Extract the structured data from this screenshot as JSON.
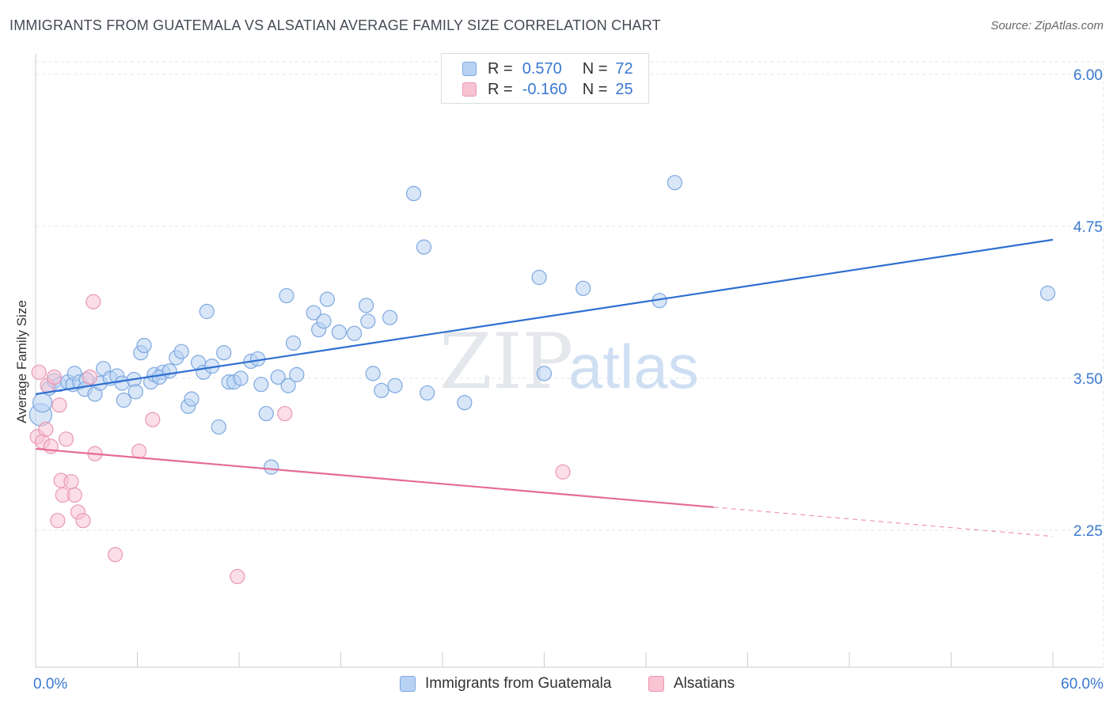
{
  "title": "IMMIGRANTS FROM GUATEMALA VS ALSATIAN AVERAGE FAMILY SIZE CORRELATION CHART",
  "source": "Source: ZipAtlas.com",
  "watermark": {
    "zip": "ZIP",
    "atlas": "atlas"
  },
  "legend": {
    "rows": [
      {
        "r_label": "R =",
        "r_value": "0.570",
        "n_label": "N =",
        "n_value": "72"
      },
      {
        "r_label": "R =",
        "r_value": "-0.160",
        "n_label": "N =",
        "n_value": "25"
      }
    ]
  },
  "bottom_legend": [
    "Immigrants from Guatemala",
    "Alsatians"
  ],
  "colors": {
    "blue_fill": "#b8d2f3",
    "blue_stroke": "#7ea8e0",
    "blue_line": "#2f6fd0",
    "pink_fill": "#f8c3d3",
    "pink_stroke": "#ea98b4",
    "pink_line": "#e56b98",
    "tick_label": "#3a78d0",
    "grid": "#e3e6ea"
  },
  "chart_data": {
    "type": "scatter",
    "title": "IMMIGRANTS FROM GUATEMALA VS ALSATIAN AVERAGE FAMILY SIZE CORRELATION CHART",
    "xlabel": "",
    "ylabel": "Average Family Size",
    "xlim": [
      0,
      60
    ],
    "ylim": [
      1.25,
      6.25
    ],
    "x_tick_labels": [
      "0.0%",
      "60.0%"
    ],
    "y_ticks": [
      2.25,
      3.5,
      4.75,
      6.0
    ],
    "y_tick_labels": [
      "2.25",
      "3.50",
      "4.75",
      "6.00"
    ],
    "grid": true,
    "legend_position": "top-center",
    "series": [
      {
        "name": "Immigrants from Guatemala",
        "trend": {
          "x": [
            0,
            60
          ],
          "y": [
            3.37,
            4.64
          ]
        },
        "points": [
          [
            0.3,
            3.2,
            14
          ],
          [
            0.4,
            3.3,
            12
          ],
          [
            0.8,
            3.42,
            9
          ],
          [
            1.1,
            3.48,
            9
          ],
          [
            1.4,
            3.45,
            9
          ],
          [
            1.9,
            3.47,
            9
          ],
          [
            2.2,
            3.45,
            9
          ],
          [
            2.3,
            3.54,
            9
          ],
          [
            2.6,
            3.47,
            9
          ],
          [
            3.0,
            3.49,
            9
          ],
          [
            2.9,
            3.41,
            9
          ],
          [
            3.5,
            3.37,
            9
          ],
          [
            3.8,
            3.46,
            9
          ],
          [
            4.0,
            3.58,
            9
          ],
          [
            4.4,
            3.5,
            9
          ],
          [
            4.8,
            3.52,
            9
          ],
          [
            5.1,
            3.46,
            9
          ],
          [
            5.2,
            3.32,
            9
          ],
          [
            5.8,
            3.49,
            9
          ],
          [
            5.9,
            3.39,
            9
          ],
          [
            6.2,
            3.71,
            9
          ],
          [
            6.4,
            3.77,
            9
          ],
          [
            6.8,
            3.47,
            9
          ],
          [
            7.0,
            3.53,
            9
          ],
          [
            7.5,
            3.55,
            9
          ],
          [
            7.3,
            3.51,
            9
          ],
          [
            7.9,
            3.56,
            9
          ],
          [
            8.3,
            3.67,
            9
          ],
          [
            8.6,
            3.72,
            9
          ],
          [
            9.0,
            3.27,
            9
          ],
          [
            9.2,
            3.33,
            9
          ],
          [
            9.6,
            3.63,
            9
          ],
          [
            9.9,
            3.55,
            9
          ],
          [
            10.1,
            4.05,
            9
          ],
          [
            10.4,
            3.6,
            9
          ],
          [
            10.8,
            3.1,
            9
          ],
          [
            11.1,
            3.71,
            9
          ],
          [
            11.4,
            3.47,
            9
          ],
          [
            11.7,
            3.47,
            9
          ],
          [
            12.1,
            3.5,
            9
          ],
          [
            12.7,
            3.64,
            9
          ],
          [
            13.1,
            3.66,
            9
          ],
          [
            13.3,
            3.45,
            9
          ],
          [
            13.6,
            3.21,
            9
          ],
          [
            13.9,
            2.77,
            9
          ],
          [
            14.3,
            3.51,
            9
          ],
          [
            14.9,
            3.44,
            9
          ],
          [
            14.8,
            4.18,
            9
          ],
          [
            15.2,
            3.79,
            9
          ],
          [
            15.4,
            3.53,
            9
          ],
          [
            16.4,
            4.04,
            9
          ],
          [
            16.7,
            3.9,
            9
          ],
          [
            17.0,
            3.97,
            9
          ],
          [
            17.2,
            4.15,
            9
          ],
          [
            17.9,
            3.88,
            9
          ],
          [
            18.8,
            3.87,
            9
          ],
          [
            19.5,
            4.1,
            9
          ],
          [
            19.6,
            3.97,
            9
          ],
          [
            19.9,
            3.54,
            9
          ],
          [
            20.4,
            3.4,
            9
          ],
          [
            20.9,
            4.0,
            9
          ],
          [
            21.2,
            3.44,
            9
          ],
          [
            22.3,
            5.02,
            9
          ],
          [
            23.1,
            3.38,
            9
          ],
          [
            22.9,
            4.58,
            9
          ],
          [
            25.3,
            3.3,
            9
          ],
          [
            29.7,
            4.33,
            9
          ],
          [
            30.0,
            3.54,
            9
          ],
          [
            32.3,
            4.24,
            9
          ],
          [
            36.8,
            4.14,
            9
          ],
          [
            37.7,
            5.11,
            9
          ],
          [
            59.7,
            4.2,
            9
          ]
        ]
      },
      {
        "name": "Alsatians",
        "trend": {
          "x": [
            0,
            40
          ],
          "y": [
            2.92,
            2.44
          ]
        },
        "trend_dashed": {
          "x": [
            40,
            60
          ],
          "y": [
            2.44,
            2.2
          ]
        },
        "points": [
          [
            0.1,
            3.02,
            9
          ],
          [
            0.4,
            2.98,
            9
          ],
          [
            0.6,
            3.08,
            9
          ],
          [
            0.7,
            3.44,
            9
          ],
          [
            0.9,
            2.94,
            9
          ],
          [
            1.1,
            3.51,
            9
          ],
          [
            1.3,
            2.33,
            9
          ],
          [
            1.4,
            3.28,
            9
          ],
          [
            1.5,
            2.66,
            9
          ],
          [
            1.6,
            2.54,
            9
          ],
          [
            1.8,
            3.0,
            9
          ],
          [
            2.1,
            2.65,
            9
          ],
          [
            2.3,
            2.54,
            9
          ],
          [
            2.5,
            2.4,
            9
          ],
          [
            2.8,
            2.33,
            9
          ],
          [
            3.2,
            3.51,
            9
          ],
          [
            3.5,
            2.88,
            9
          ],
          [
            3.4,
            4.13,
            9
          ],
          [
            4.7,
            2.05,
            9
          ],
          [
            6.1,
            2.9,
            9
          ],
          [
            6.9,
            3.16,
            9
          ],
          [
            11.9,
            1.87,
            9
          ],
          [
            14.7,
            3.21,
            9
          ],
          [
            31.1,
            2.73,
            9
          ],
          [
            0.2,
            3.55,
            9
          ]
        ]
      }
    ]
  }
}
